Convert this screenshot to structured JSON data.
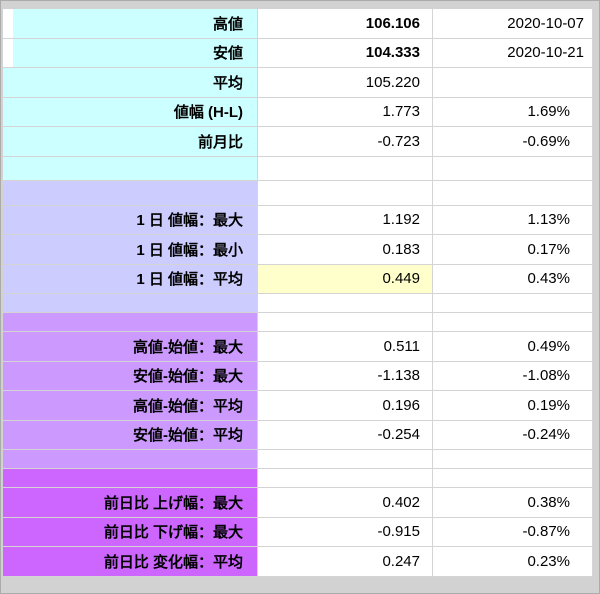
{
  "colors": {
    "frame_bg": "#d2d2d2",
    "frame_border": "#ababab",
    "grid_line": "#d4d4d4",
    "green": "#00a050",
    "red": "#e60000",
    "band_cyan": "#ccffff",
    "band_lavender": "#ccccff",
    "band_violet": "#cc99ff",
    "band_magenta": "#cc66ff",
    "highlight": "#ffffcc"
  },
  "rows": [
    {
      "kind": "data",
      "band": "cyan",
      "strip": "white",
      "label": "高値",
      "value": "106.106",
      "third": "2020-10-07",
      "value_style": "green bold",
      "third_style": "green date"
    },
    {
      "kind": "data",
      "band": "cyan",
      "strip": "white",
      "label": "安値",
      "value": "104.333",
      "third": "2020-10-21",
      "value_style": "red bold",
      "third_style": "red date"
    },
    {
      "kind": "data",
      "band": "cyan",
      "label": "平均",
      "value": "105.220",
      "third": "",
      "value_style": "",
      "third_style": ""
    },
    {
      "kind": "data",
      "band": "cyan",
      "label": "値幅 (H-L)",
      "value": "1.773",
      "third": "1.69%",
      "value_style": "",
      "third_style": ""
    },
    {
      "kind": "data",
      "band": "cyan",
      "label": "前月比",
      "value": "-0.723",
      "third": "-0.69%",
      "value_style": "red",
      "third_style": "red"
    },
    {
      "kind": "spacer",
      "size": "lg",
      "band": "cyan"
    },
    {
      "kind": "spacer",
      "size": "lg",
      "band": "lavender"
    },
    {
      "kind": "data",
      "band": "lavender",
      "label": "1 日 値幅：最大",
      "value": "1.192",
      "third": "1.13%",
      "value_style": "",
      "third_style": ""
    },
    {
      "kind": "data",
      "band": "lavender",
      "label": "1 日 値幅：最小",
      "value": "0.183",
      "third": "0.17%",
      "value_style": "",
      "third_style": ""
    },
    {
      "kind": "data",
      "band": "lavender",
      "label": "1 日 値幅：平均",
      "value": "0.449",
      "third": "0.43%",
      "value_style": "",
      "third_style": "",
      "value_bg": "highlight"
    },
    {
      "kind": "spacer",
      "size": "sm",
      "band": "lavender"
    },
    {
      "kind": "spacer",
      "size": "sm",
      "band": "violet"
    },
    {
      "kind": "data",
      "band": "violet",
      "label": "高値-始値：最大",
      "value": "0.511",
      "third": "0.49%",
      "value_style": "",
      "third_style": ""
    },
    {
      "kind": "data",
      "band": "violet",
      "label": "安値-始値：最大",
      "value": "-1.138",
      "third": "-1.08%",
      "value_style": "red",
      "third_style": "red"
    },
    {
      "kind": "data",
      "band": "violet",
      "label": "高値-始値：平均",
      "value": "0.196",
      "third": "0.19%",
      "value_style": "",
      "third_style": ""
    },
    {
      "kind": "data",
      "band": "violet",
      "label": "安値-始値：平均",
      "value": "-0.254",
      "third": "-0.24%",
      "value_style": "red",
      "third_style": "red"
    },
    {
      "kind": "spacer",
      "size": "sm",
      "band": "violet"
    },
    {
      "kind": "spacer",
      "size": "sm",
      "band": "magenta"
    },
    {
      "kind": "data",
      "band": "magenta",
      "label": "前日比 上げ幅：最大",
      "value": "0.402",
      "third": "0.38%",
      "value_style": "",
      "third_style": ""
    },
    {
      "kind": "data",
      "band": "magenta",
      "label": "前日比 下げ幅：最大",
      "value": "-0.915",
      "third": "-0.87%",
      "value_style": "red",
      "third_style": "red"
    },
    {
      "kind": "data",
      "band": "magenta",
      "label": "前日比 変化幅：平均",
      "value": "0.247",
      "third": "0.23%",
      "value_style": "",
      "third_style": ""
    }
  ]
}
